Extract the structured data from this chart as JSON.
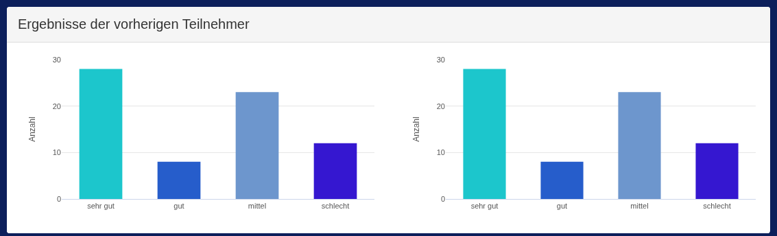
{
  "chart_data": [
    {
      "type": "bar",
      "title": "Ergebnisse der vorherigen Teilnehmer",
      "ylabel": "Anzahl",
      "categories": [
        "sehr gut",
        "gut",
        "mittel",
        "schlecht"
      ],
      "values": [
        28,
        8,
        23,
        12
      ],
      "colors": [
        "#1cc6cc",
        "#265dcb",
        "#6d96cd",
        "#3517d0"
      ],
      "ylim": [
        0,
        30
      ],
      "yticks": [
        0,
        10,
        20,
        30
      ],
      "grid": "y"
    },
    {
      "type": "bar",
      "ylabel": "Anzahl",
      "categories": [
        "sehr gut",
        "gut",
        "mittel",
        "schlecht"
      ],
      "values": [
        28,
        8,
        23,
        12
      ],
      "colors": [
        "#1cc6cc",
        "#265dcb",
        "#6d96cd",
        "#3517d0"
      ],
      "ylim": [
        0,
        30
      ],
      "yticks": [
        0,
        10,
        20,
        30
      ],
      "grid": "y"
    }
  ]
}
